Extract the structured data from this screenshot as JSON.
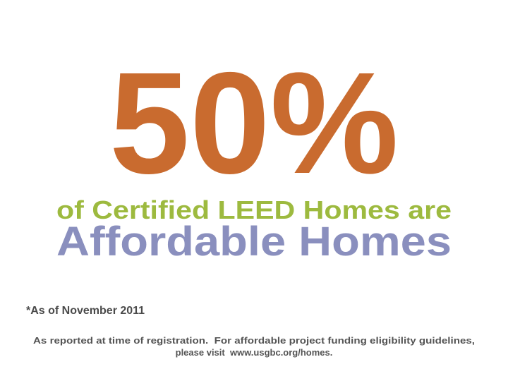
{
  "headline": "50%",
  "subtitle": "of Certified LEED Homes are",
  "emphasis": "Affordable Homes",
  "footnote": "*As of November 2011",
  "source": [
    "As reported at time of registration.  For affordable project funding eligibility guidelines,",
    "please visit  www.usgbc.org/homes."
  ]
}
